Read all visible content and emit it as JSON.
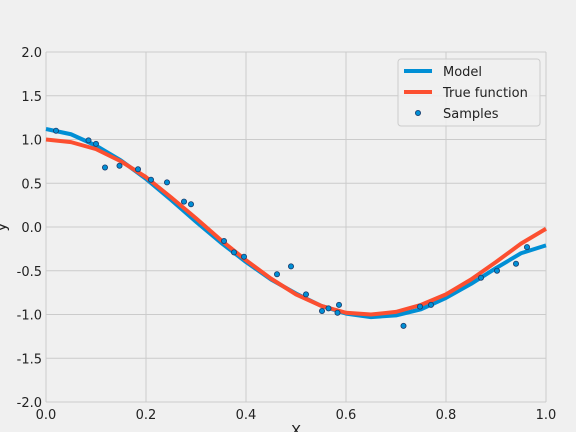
{
  "chart_data": {
    "type": "line",
    "title": "",
    "xlabel": "X",
    "ylabel": "y",
    "xlim": [
      0,
      1
    ],
    "ylim": [
      -2,
      2
    ],
    "x_ticks": [
      "0.0",
      "0.2",
      "0.4",
      "0.6",
      "0.8",
      "1.0"
    ],
    "y_ticks": [
      "2.0",
      "1.5",
      "1.0",
      "0.5",
      "0.0",
      "-0.5",
      "-1.0",
      "-1.5",
      "-2.0"
    ],
    "grid": true,
    "legend_position": "top-right",
    "series": [
      {
        "name": "Model",
        "kind": "line",
        "color": "#008fd5",
        "x": [
          0.0,
          0.05,
          0.1,
          0.15,
          0.2,
          0.25,
          0.3,
          0.35,
          0.4,
          0.45,
          0.5,
          0.55,
          0.6,
          0.65,
          0.7,
          0.75,
          0.8,
          0.85,
          0.9,
          0.95,
          1.0
        ],
        "y": [
          1.12,
          1.06,
          0.93,
          0.76,
          0.55,
          0.31,
          0.06,
          -0.18,
          -0.4,
          -0.6,
          -0.76,
          -0.9,
          -0.99,
          -1.03,
          -1.01,
          -0.94,
          -0.81,
          -0.65,
          -0.47,
          -0.3,
          -0.21
        ]
      },
      {
        "name": "True function",
        "kind": "line",
        "color": "#fc4f30",
        "x": [
          0.0,
          0.05,
          0.1,
          0.15,
          0.2,
          0.25,
          0.3,
          0.35,
          0.4,
          0.45,
          0.5,
          0.55,
          0.6,
          0.65,
          0.7,
          0.75,
          0.8,
          0.85,
          0.9,
          0.95,
          1.0
        ],
        "y": [
          1.0,
          0.97,
          0.89,
          0.75,
          0.57,
          0.34,
          0.1,
          -0.15,
          -0.38,
          -0.59,
          -0.77,
          -0.9,
          -0.98,
          -1.0,
          -0.97,
          -0.89,
          -0.77,
          -0.6,
          -0.4,
          -0.19,
          -0.02
        ]
      },
      {
        "name": "Samples",
        "kind": "scatter",
        "color": "#008fd5",
        "x": [
          0.02,
          0.085,
          0.1,
          0.118,
          0.147,
          0.184,
          0.21,
          0.242,
          0.276,
          0.29,
          0.356,
          0.376,
          0.396,
          0.462,
          0.49,
          0.52,
          0.552,
          0.565,
          0.583,
          0.586,
          0.715,
          0.748,
          0.77,
          0.87,
          0.902,
          0.94,
          0.962
        ],
        "y": [
          1.1,
          0.99,
          0.95,
          0.68,
          0.7,
          0.66,
          0.54,
          0.51,
          0.29,
          0.26,
          -0.16,
          -0.29,
          -0.34,
          -0.54,
          -0.45,
          -0.77,
          -0.96,
          -0.93,
          -0.98,
          -0.89,
          -1.13,
          -0.91,
          -0.89,
          -0.58,
          -0.5,
          -0.42,
          -0.23
        ]
      }
    ]
  }
}
